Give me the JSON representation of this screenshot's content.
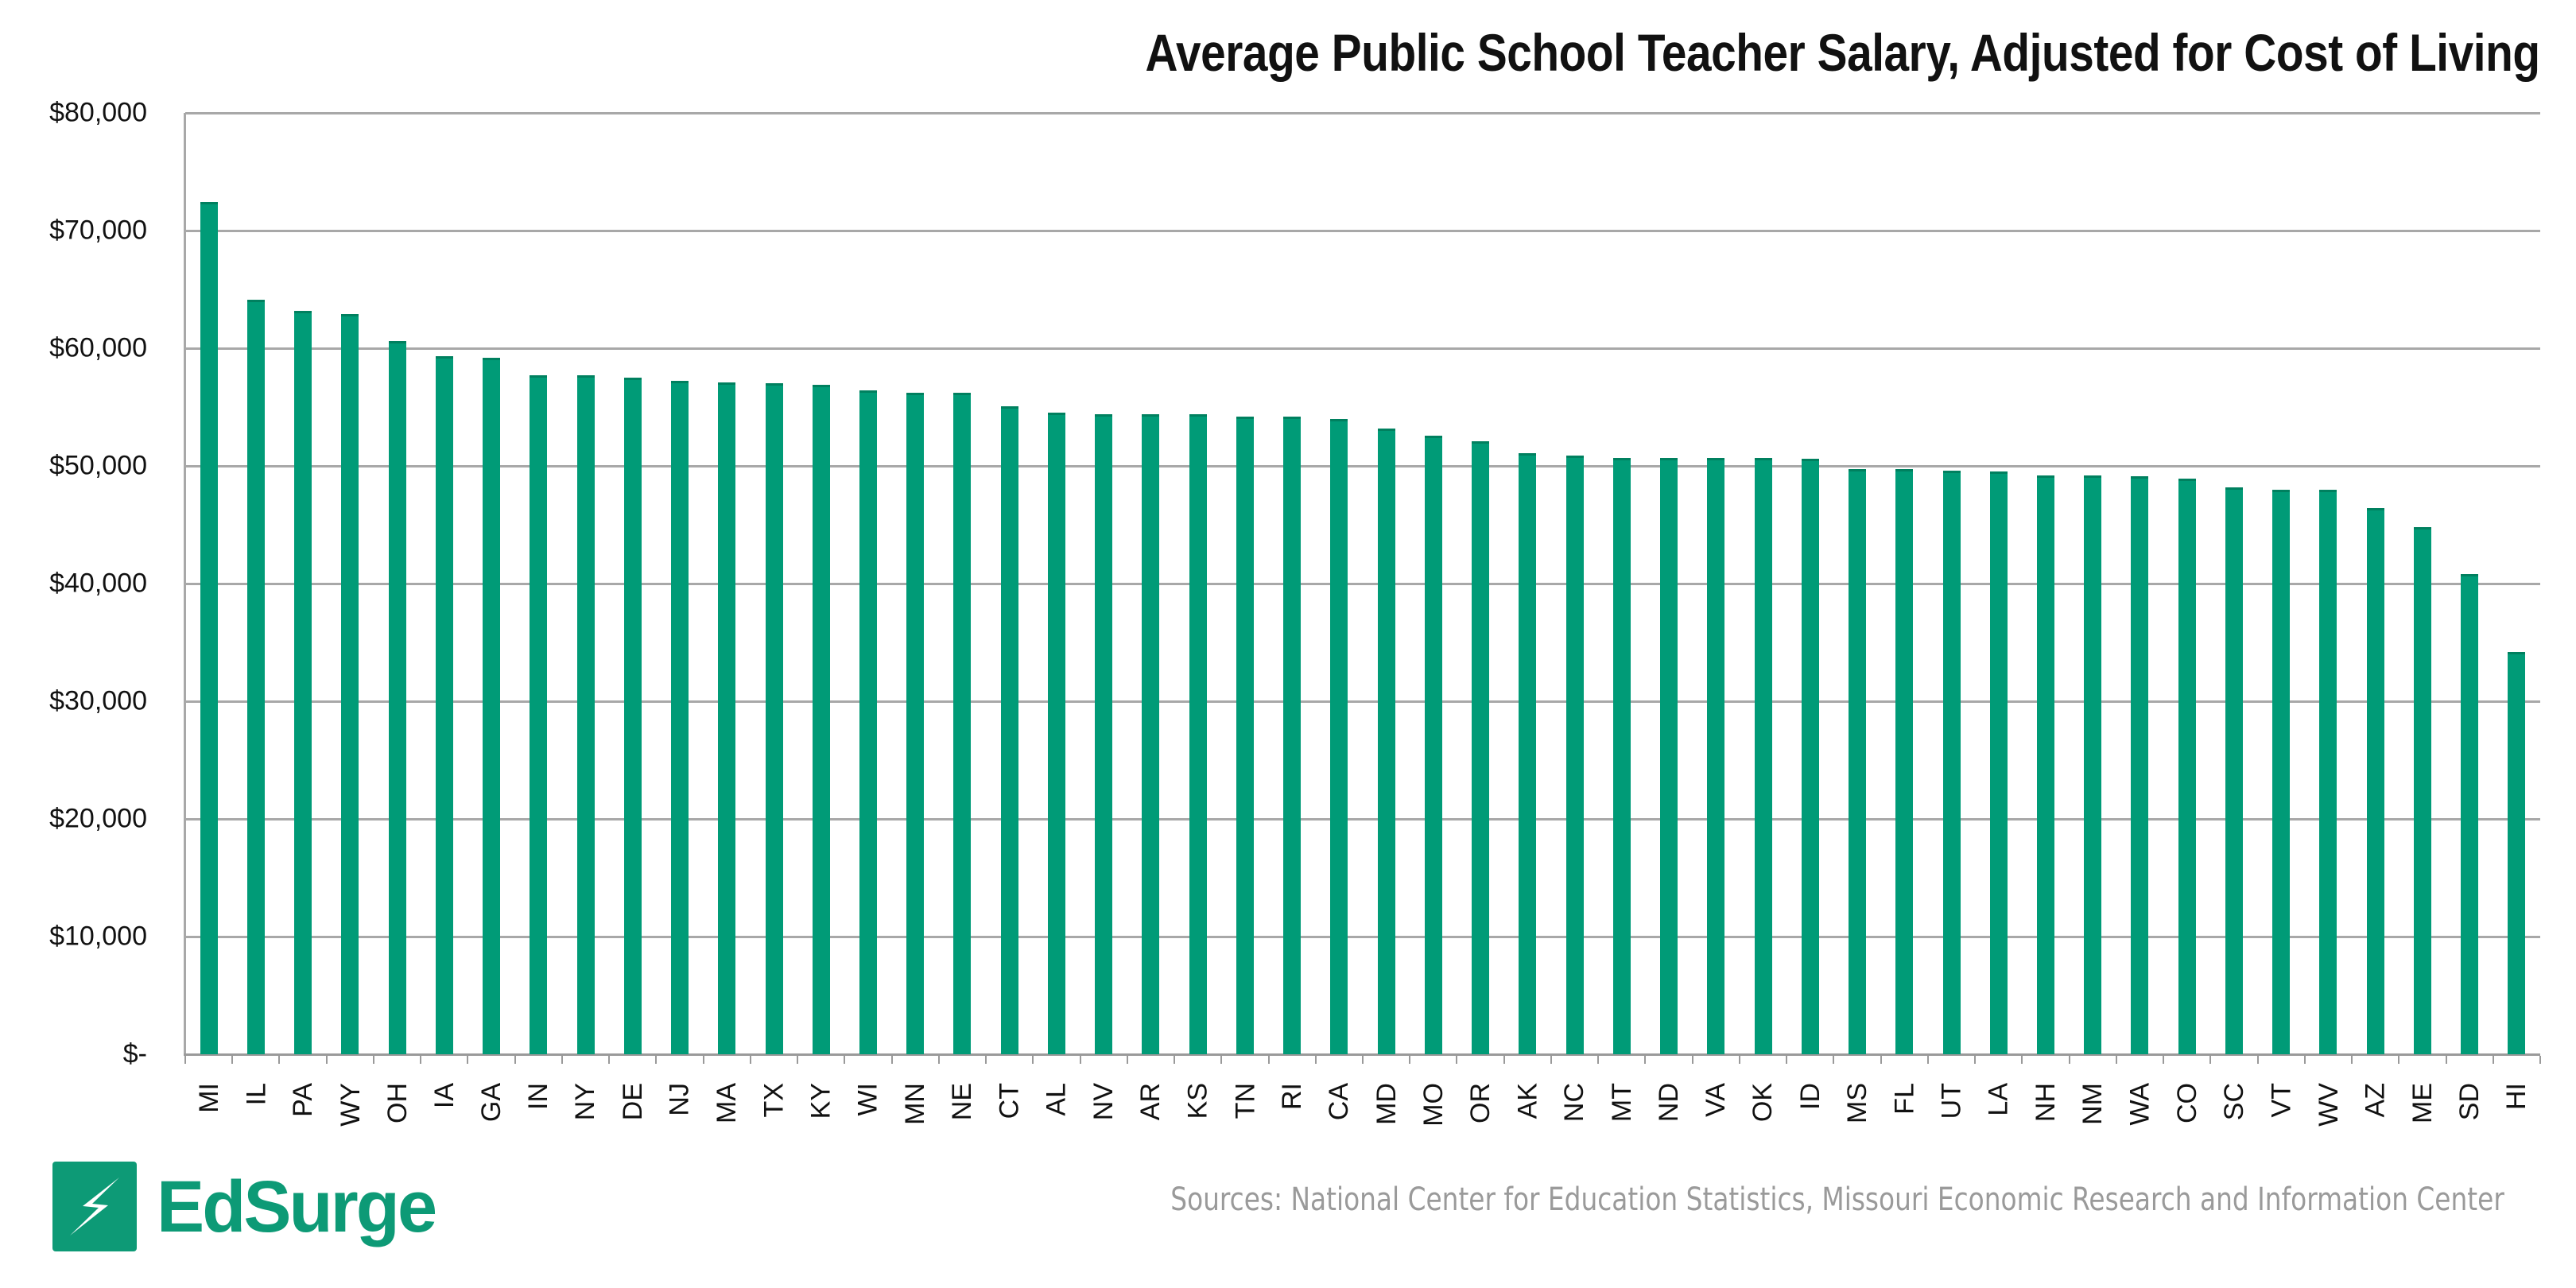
{
  "title": "Average Public School Teacher Salary, Adjusted for Cost of Living",
  "source": "Sources: National Center for Education Statistics, Missouri Economic Research and Information Center",
  "logo": {
    "text": "EdSurge",
    "icon": "lightning-bolt-icon",
    "color": "#0d9a76"
  },
  "colors": {
    "bar": "#009b77",
    "gridline": "#a8a8a8"
  },
  "y_axis": {
    "ticks": [
      "$80,000",
      "$70,000",
      "$60,000",
      "$50,000",
      "$40,000",
      "$30,000",
      "$20,000",
      "$10,000",
      "$-"
    ],
    "tick_values": [
      80000,
      70000,
      60000,
      50000,
      40000,
      30000,
      20000,
      10000,
      0
    ]
  },
  "chart_data": {
    "type": "bar",
    "title": "Average Public School Teacher Salary, Adjusted for Cost of Living",
    "xlabel": "",
    "ylabel": "",
    "ylim": [
      0,
      80000
    ],
    "grid": true,
    "legend": null,
    "categories": [
      "MI",
      "IL",
      "PA",
      "WY",
      "OH",
      "IA",
      "GA",
      "IN",
      "NY",
      "DE",
      "NJ",
      "MA",
      "TX",
      "KY",
      "WI",
      "MN",
      "NE",
      "CT",
      "AL",
      "NV",
      "AR",
      "KS",
      "TN",
      "RI",
      "CA",
      "MD",
      "MO",
      "OR",
      "AK",
      "NC",
      "MT",
      "ND",
      "VA",
      "OK",
      "ID",
      "MS",
      "FL",
      "UT",
      "LA",
      "NH",
      "NM",
      "WA",
      "CO",
      "SC",
      "VT",
      "WV",
      "AZ",
      "ME",
      "SD",
      "HI"
    ],
    "values": [
      72400,
      64100,
      63200,
      62900,
      60600,
      59300,
      59200,
      57700,
      57700,
      57500,
      57200,
      57100,
      57000,
      56900,
      56400,
      56200,
      56200,
      55100,
      54500,
      54400,
      54400,
      54400,
      54200,
      54200,
      54000,
      53200,
      52600,
      52100,
      51100,
      50900,
      50700,
      50700,
      50700,
      50700,
      50600,
      49700,
      49700,
      49600,
      49500,
      49200,
      49200,
      49100,
      48900,
      48200,
      48000,
      48000,
      46400,
      44800,
      40800,
      34200
    ],
    "annotations": [
      "Sources: National Center for Education Statistics, Missouri Economic Research and Information Center"
    ]
  }
}
